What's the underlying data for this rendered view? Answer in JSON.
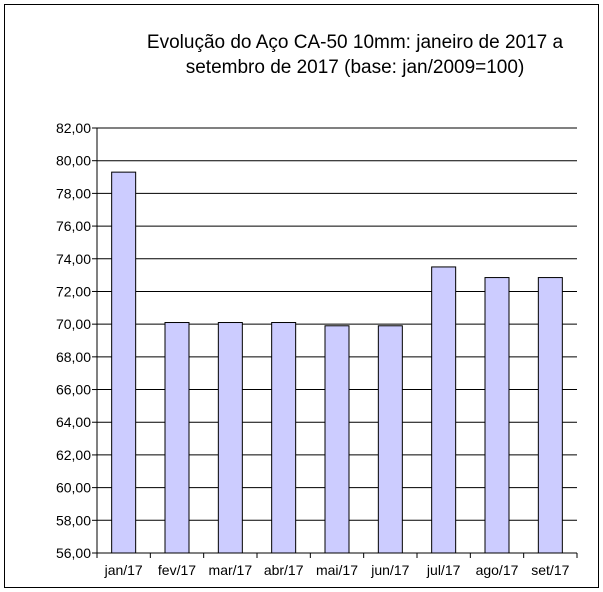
{
  "chart_data": {
    "type": "bar",
    "title": "Evolução do Aço CA-50 10mm: janeiro de 2017 a setembro de 2017 (base: jan/2009=100)",
    "title_lines": [
      "Evolução  do Aço CA-50 10mm: janeiro de 2017 a",
      "setembro de 2017 (base: jan/2009=100)"
    ],
    "categories": [
      "jan/17",
      "fev/17",
      "mar/17",
      "abr/17",
      "mai/17",
      "jun/17",
      "jul/17",
      "ago/17",
      "set/17"
    ],
    "values": [
      79.3,
      70.1,
      70.1,
      70.1,
      69.9,
      69.9,
      73.5,
      72.85,
      72.85
    ],
    "xlabel": "",
    "ylabel": "",
    "ylim": [
      56,
      82
    ],
    "yticks": [
      "56,00",
      "58,00",
      "60,00",
      "62,00",
      "64,00",
      "66,00",
      "68,00",
      "70,00",
      "72,00",
      "74,00",
      "76,00",
      "78,00",
      "80,00",
      "82,00"
    ],
    "grid": true,
    "legend": "none",
    "bar_color": "#ccccff"
  }
}
